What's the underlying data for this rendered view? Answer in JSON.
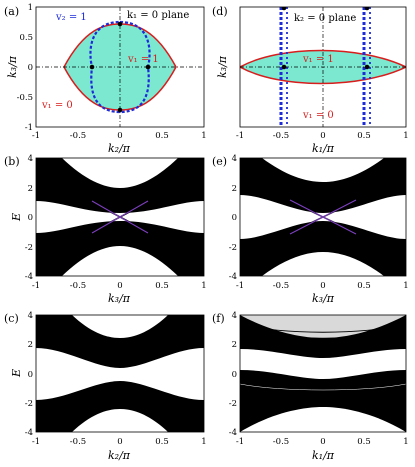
{
  "figure": {
    "panel_labels": {
      "a": "(a)",
      "b": "(b)",
      "c": "(c)",
      "d": "(d)",
      "e": "(e)",
      "f": "(f)"
    },
    "colors": {
      "fill": "#7be8cf",
      "red": "#d81d1d",
      "blue": "#1d2bd8",
      "purple": "#7d3fc0"
    },
    "panel_a": {
      "plane_label": "k₁ = 0 plane",
      "xlabel": "k₂/π",
      "ylabel": "k₃/π",
      "v1_inside": "v₁ = 1",
      "v1_outside": "v₁ = 0",
      "v2_label": "v₂ = 1",
      "xticks": [
        "-1",
        "-0.5",
        "0",
        "0.5",
        "1"
      ],
      "yticks": [
        "-1",
        "-0.5",
        "0",
        "0.5",
        "1"
      ]
    },
    "panel_d": {
      "plane_label": "k₂ = 0 plane",
      "xlabel": "k₁/π",
      "ylabel": "k₃/π",
      "v1_inside": "v₁ = 1",
      "v1_outside": "v₁ = 0",
      "xticks": [
        "-1",
        "-0.5",
        "0",
        "0.5",
        "1"
      ]
    },
    "panel_b": {
      "xlabel": "k₃/π",
      "ylabel": "E",
      "xticks": [
        "-1",
        "-0.5",
        "0",
        "0.5",
        "1"
      ],
      "yticks": [
        "4",
        "2",
        "0",
        "-2",
        "-4"
      ]
    },
    "panel_e": {
      "xlabel": "k₃/π",
      "xticks": [
        "-1",
        "-0.5",
        "0",
        "0.5",
        "1"
      ],
      "yticks": [
        "4",
        "2",
        "0",
        "-2",
        "-4"
      ]
    },
    "panel_c": {
      "xlabel": "k₂/π",
      "ylabel": "E",
      "xticks": [
        "-1",
        "-0.5",
        "0",
        "0.5",
        "1"
      ],
      "yticks": [
        "4",
        "2",
        "0",
        "-2",
        "-4"
      ]
    },
    "panel_f": {
      "xlabel": "k₁/π",
      "xticks": [
        "-1",
        "-0.5",
        "0",
        "0.5",
        "1"
      ],
      "yticks": [
        "4",
        "2",
        "0",
        "-2",
        "-4"
      ]
    }
  }
}
